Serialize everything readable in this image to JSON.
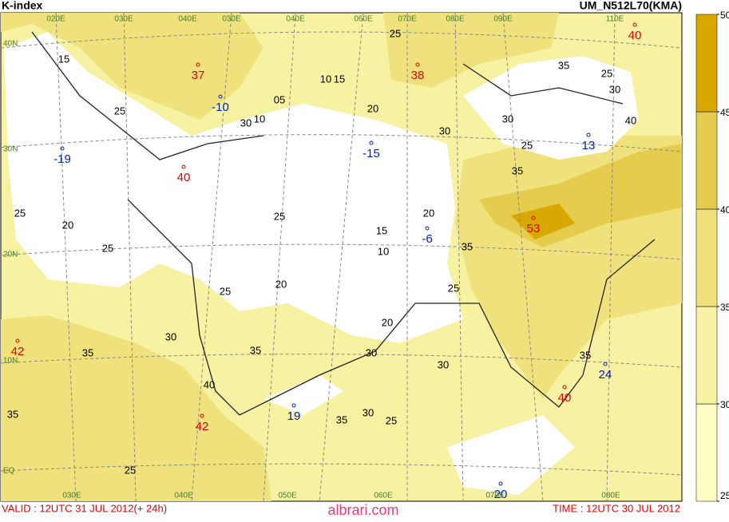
{
  "header": {
    "title": "K-index",
    "model": "UM_N512L70(KMA)"
  },
  "footer": {
    "valid": "VALID : 12UTC 31 JUL 2012(+ 24h)",
    "time": "TIME : 12UTC 30 JUL 2012",
    "watermark": "albrari.com"
  },
  "colorbar": {
    "ticks": [
      25,
      30,
      35,
      40,
      45,
      50
    ],
    "colors": [
      "#ffffc4",
      "#f7f1a2",
      "#efe27c",
      "#e6cc4c",
      "#d8a800"
    ]
  },
  "extrema": [
    {
      "label": "37",
      "kind": "high"
    },
    {
      "label": "40",
      "kind": "high"
    },
    {
      "label": "38",
      "kind": "high"
    },
    {
      "label": "-10",
      "kind": "low"
    },
    {
      "label": "-19",
      "kind": "low"
    },
    {
      "label": "-15",
      "kind": "low"
    },
    {
      "label": "13",
      "kind": "low"
    },
    {
      "label": "40",
      "kind": "high"
    },
    {
      "label": "-6",
      "kind": "low"
    },
    {
      "label": "53",
      "kind": "high"
    },
    {
      "label": "42",
      "kind": "high"
    },
    {
      "label": "40",
      "kind": "high"
    },
    {
      "label": "24",
      "kind": "low"
    },
    {
      "label": "19",
      "kind": "low"
    },
    {
      "label": "42",
      "kind": "high"
    },
    {
      "label": "20",
      "kind": "low"
    }
  ],
  "contour_labels": [
    "25",
    "35",
    "25",
    "30",
    "30",
    "40",
    "25",
    "35",
    "30",
    "20",
    "10",
    "15",
    "05",
    "10",
    "30",
    "15",
    "25",
    "25",
    "20",
    "25",
    "20",
    "15",
    "10",
    "35",
    "25",
    "20",
    "25",
    "25",
    "20",
    "30",
    "30",
    "35",
    "35",
    "30",
    "40",
    "35",
    "35",
    "30",
    "25",
    "35",
    "25"
  ],
  "lon_labels_top": [
    "020E",
    "030E",
    "040E",
    "030E",
    "040E",
    "060E",
    "070E",
    "080E",
    "090E",
    "110E"
  ],
  "lon_labels_bottom": [
    "030E",
    "040E",
    "050E",
    "060E",
    "070E",
    "080E"
  ],
  "lat_labels": [
    "40N",
    "30N",
    "20N",
    "10N",
    "EQ"
  ]
}
